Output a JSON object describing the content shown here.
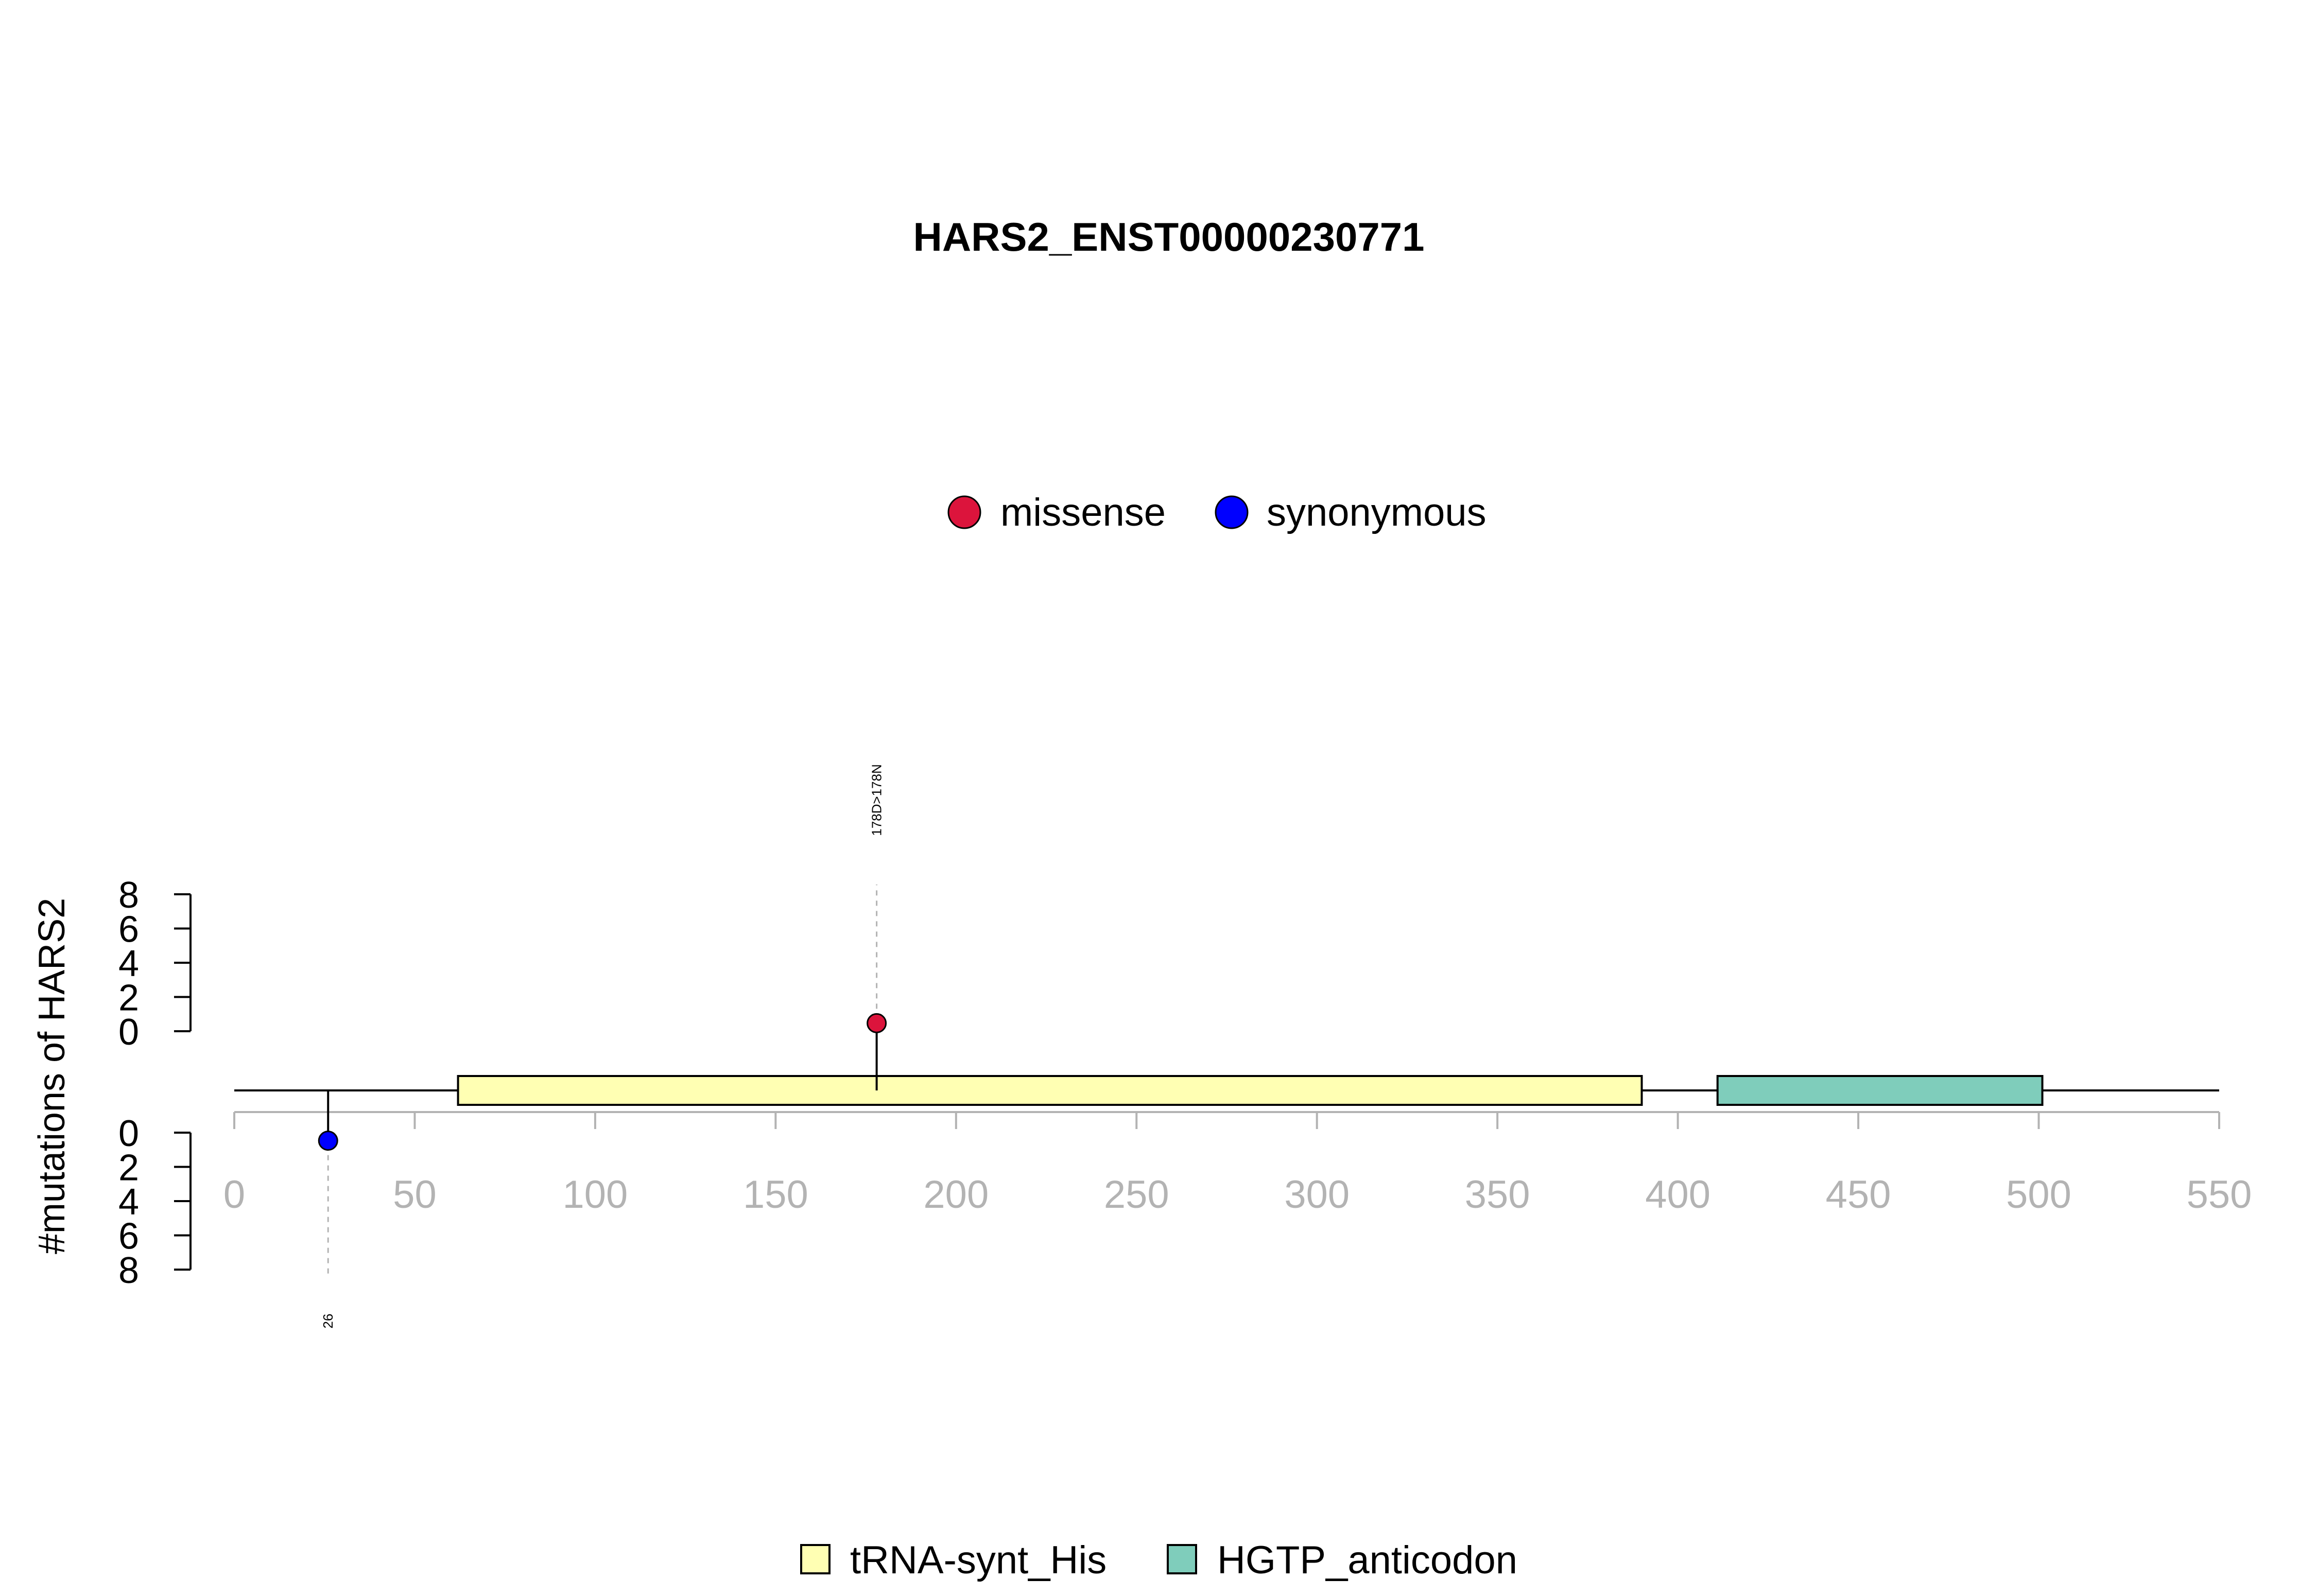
{
  "chart_data": {
    "type": "lollipop",
    "title": "HARS2_ENST00000230771",
    "ylabel": "#mutations of HARS2",
    "xlim": [
      0,
      550
    ],
    "x_ticks": [
      0,
      50,
      100,
      150,
      200,
      250,
      300,
      350,
      400,
      450,
      500,
      550
    ],
    "y_ticks_top": [
      0,
      2,
      4,
      6,
      8
    ],
    "y_ticks_bottom": [
      0,
      2,
      4,
      6,
      8
    ],
    "mutation_legend": [
      {
        "label": "missense",
        "color": "#DC143C"
      },
      {
        "label": "synonymous",
        "color": "#0000FF"
      }
    ],
    "domain_legend": [
      {
        "label": "tRNA-synt_His",
        "color": "#FFFFB3"
      },
      {
        "label": "HGTP_anticodon",
        "color": "#7FCDBB"
      }
    ],
    "domains": [
      {
        "name": "tRNA-synt_His",
        "start": 62,
        "end": 390,
        "color": "#FFFFB3"
      },
      {
        "name": "HGTP_anticodon",
        "start": 411,
        "end": 501,
        "color": "#7FCDBB"
      }
    ],
    "mutations": [
      {
        "position": 178,
        "count": 1,
        "type": "missense",
        "side": "top",
        "label": "178D>178N",
        "color": "#DC143C"
      },
      {
        "position": 26,
        "count": 1,
        "type": "synonymous",
        "side": "bottom",
        "label": "26",
        "color": "#0000FF"
      }
    ]
  }
}
